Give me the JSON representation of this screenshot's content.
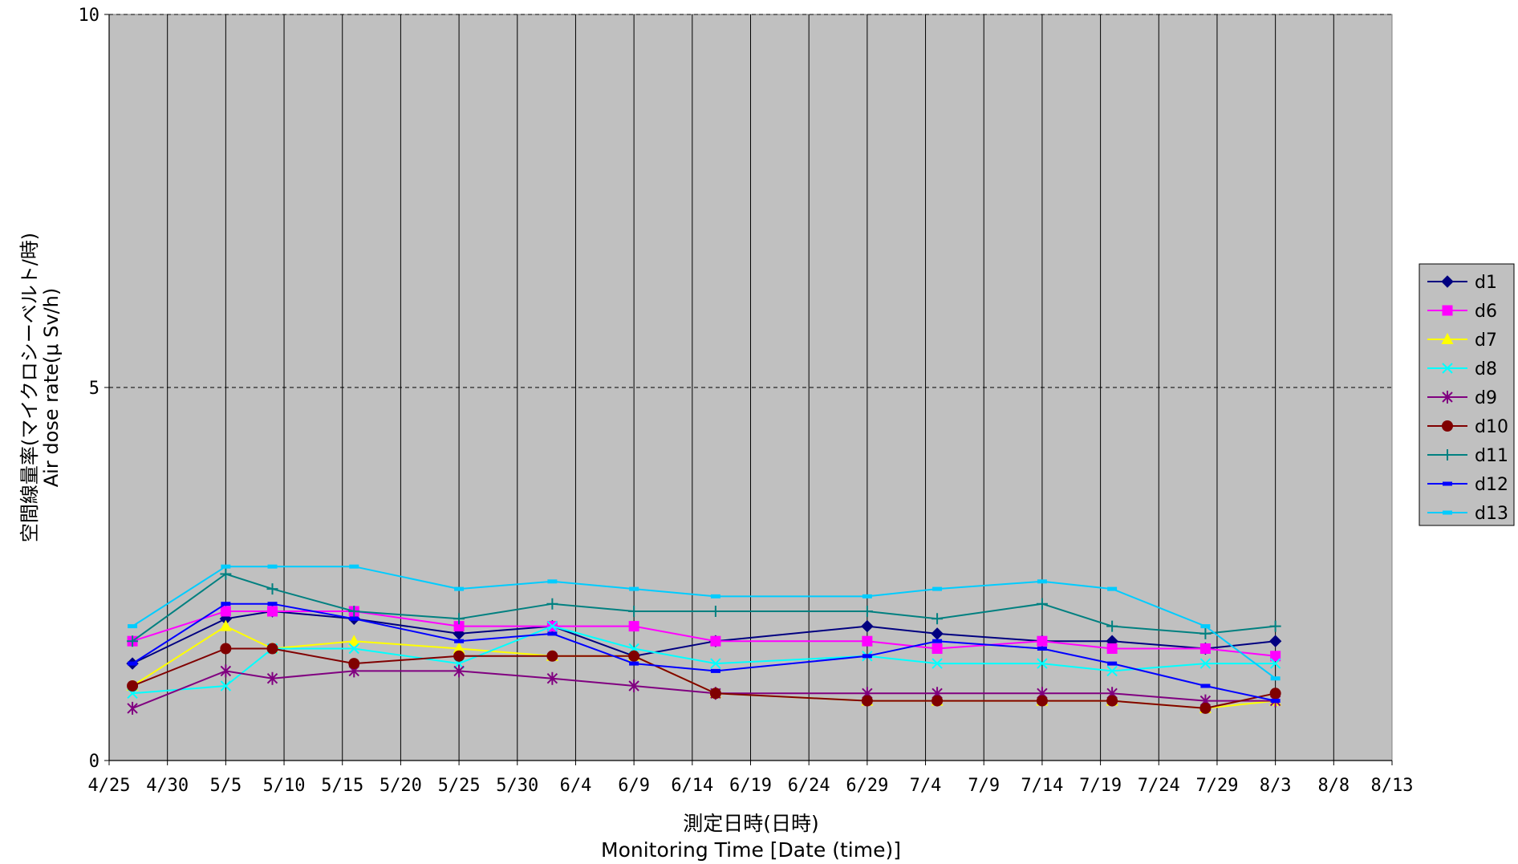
{
  "chart_data": {
    "type": "line",
    "title": "",
    "ylabel_ja": "空間線量率(マイクロシーベルト/時)",
    "ylabel_en": "Air dose rate(μ Sv/h)",
    "xlabel_ja": "測定日時(日時)",
    "xlabel_en": "Monitoring Time [Date (time)]",
    "ylim": [
      0,
      10
    ],
    "yticks": [
      "0",
      "5",
      "10"
    ],
    "xlim": [
      "2011-04-25",
      "2011-08-13"
    ],
    "xticks": [
      "4/25",
      "4/30",
      "5/5",
      "5/10",
      "5/15",
      "5/20",
      "5/25",
      "5/30",
      "6/4",
      "6/9",
      "6/14",
      "6/19",
      "6/24",
      "6/29",
      "7/4",
      "7/9",
      "7/14",
      "7/19",
      "7/24",
      "7/29",
      "8/3",
      "8/8",
      "8/13"
    ],
    "grid": {
      "vertical": true,
      "horizontal_dashed": [
        5,
        10
      ]
    },
    "legend_position": "right",
    "plot_background": "#c0c0c0",
    "series": [
      {
        "name": "d1",
        "color": "#000080",
        "marker": "diamond",
        "points": [
          [
            "2011-04-27",
            1.3
          ],
          [
            "2011-05-05",
            1.9
          ],
          [
            "2011-05-09",
            2.0
          ],
          [
            "2011-05-16",
            1.9
          ],
          [
            "2011-05-25",
            1.7
          ],
          [
            "2011-06-02",
            1.8
          ],
          [
            "2011-06-09",
            1.4
          ],
          [
            "2011-06-16",
            1.6
          ],
          [
            "2011-06-29",
            1.8
          ],
          [
            "2011-07-05",
            1.7
          ],
          [
            "2011-07-14",
            1.6
          ],
          [
            "2011-07-20",
            1.6
          ],
          [
            "2011-07-28",
            1.5
          ],
          [
            "2011-08-03",
            1.6
          ]
        ]
      },
      {
        "name": "d6",
        "color": "#ff00ff",
        "marker": "square",
        "points": [
          [
            "2011-04-27",
            1.6
          ],
          [
            "2011-05-05",
            2.0
          ],
          [
            "2011-05-09",
            2.0
          ],
          [
            "2011-05-16",
            2.0
          ],
          [
            "2011-05-25",
            1.8
          ],
          [
            "2011-06-02",
            1.8
          ],
          [
            "2011-06-09",
            1.8
          ],
          [
            "2011-06-16",
            1.6
          ],
          [
            "2011-06-29",
            1.6
          ],
          [
            "2011-07-05",
            1.5
          ],
          [
            "2011-07-14",
            1.6
          ],
          [
            "2011-07-20",
            1.5
          ],
          [
            "2011-07-28",
            1.5
          ],
          [
            "2011-08-03",
            1.4
          ]
        ]
      },
      {
        "name": "d7",
        "color": "#ffff00",
        "marker": "triangle",
        "points": [
          [
            "2011-04-27",
            1.0
          ],
          [
            "2011-05-05",
            1.8
          ],
          [
            "2011-05-09",
            1.5
          ],
          [
            "2011-05-16",
            1.6
          ],
          [
            "2011-05-25",
            1.5
          ],
          [
            "2011-06-02",
            1.4
          ],
          [
            "2011-06-09",
            1.4
          ],
          [
            "2011-06-16",
            0.9
          ],
          [
            "2011-06-29",
            0.8
          ],
          [
            "2011-07-05",
            0.8
          ],
          [
            "2011-07-14",
            0.8
          ],
          [
            "2011-07-20",
            0.8
          ],
          [
            "2011-07-28",
            0.7
          ],
          [
            "2011-08-03",
            0.8
          ]
        ]
      },
      {
        "name": "d8",
        "color": "#00ffff",
        "marker": "x",
        "points": [
          [
            "2011-04-27",
            0.9
          ],
          [
            "2011-05-05",
            1.0
          ],
          [
            "2011-05-09",
            1.5
          ],
          [
            "2011-05-16",
            1.5
          ],
          [
            "2011-05-25",
            1.3
          ],
          [
            "2011-06-02",
            1.8
          ],
          [
            "2011-06-09",
            1.5
          ],
          [
            "2011-06-16",
            1.3
          ],
          [
            "2011-06-29",
            1.4
          ],
          [
            "2011-07-05",
            1.3
          ],
          [
            "2011-07-14",
            1.3
          ],
          [
            "2011-07-20",
            1.2
          ],
          [
            "2011-07-28",
            1.3
          ],
          [
            "2011-08-03",
            1.3
          ]
        ]
      },
      {
        "name": "d9",
        "color": "#800080",
        "marker": "star",
        "points": [
          [
            "2011-04-27",
            0.7
          ],
          [
            "2011-05-05",
            1.2
          ],
          [
            "2011-05-09",
            1.1
          ],
          [
            "2011-05-16",
            1.2
          ],
          [
            "2011-05-25",
            1.2
          ],
          [
            "2011-06-02",
            1.1
          ],
          [
            "2011-06-09",
            1.0
          ],
          [
            "2011-06-16",
            0.9
          ],
          [
            "2011-06-29",
            0.9
          ],
          [
            "2011-07-05",
            0.9
          ],
          [
            "2011-07-14",
            0.9
          ],
          [
            "2011-07-20",
            0.9
          ],
          [
            "2011-07-28",
            0.8
          ],
          [
            "2011-08-03",
            0.8
          ]
        ]
      },
      {
        "name": "d10",
        "color": "#800000",
        "marker": "circle",
        "points": [
          [
            "2011-04-27",
            1.0
          ],
          [
            "2011-05-05",
            1.5
          ],
          [
            "2011-05-09",
            1.5
          ],
          [
            "2011-05-16",
            1.3
          ],
          [
            "2011-05-25",
            1.4
          ],
          [
            "2011-06-02",
            1.4
          ],
          [
            "2011-06-09",
            1.4
          ],
          [
            "2011-06-16",
            0.9
          ],
          [
            "2011-06-29",
            0.8
          ],
          [
            "2011-07-05",
            0.8
          ],
          [
            "2011-07-14",
            0.8
          ],
          [
            "2011-07-20",
            0.8
          ],
          [
            "2011-07-28",
            0.7
          ],
          [
            "2011-08-03",
            0.9
          ]
        ]
      },
      {
        "name": "d11",
        "color": "#008080",
        "marker": "plus",
        "points": [
          [
            "2011-04-27",
            1.6
          ],
          [
            "2011-05-05",
            2.5
          ],
          [
            "2011-05-09",
            2.3
          ],
          [
            "2011-05-16",
            2.0
          ],
          [
            "2011-05-25",
            1.9
          ],
          [
            "2011-06-02",
            2.1
          ],
          [
            "2011-06-09",
            2.0
          ],
          [
            "2011-06-16",
            2.0
          ],
          [
            "2011-06-29",
            2.0
          ],
          [
            "2011-07-05",
            1.9
          ],
          [
            "2011-07-14",
            2.1
          ],
          [
            "2011-07-20",
            1.8
          ],
          [
            "2011-07-28",
            1.7
          ],
          [
            "2011-08-03",
            1.8
          ]
        ]
      },
      {
        "name": "d12",
        "color": "#0000ff",
        "marker": "dash",
        "points": [
          [
            "2011-04-27",
            1.3
          ],
          [
            "2011-05-05",
            2.1
          ],
          [
            "2011-05-09",
            2.1
          ],
          [
            "2011-05-16",
            1.9
          ],
          [
            "2011-05-25",
            1.6
          ],
          [
            "2011-06-02",
            1.7
          ],
          [
            "2011-06-09",
            1.3
          ],
          [
            "2011-06-16",
            1.2
          ],
          [
            "2011-06-29",
            1.4
          ],
          [
            "2011-07-05",
            1.6
          ],
          [
            "2011-07-14",
            1.5
          ],
          [
            "2011-07-20",
            1.3
          ],
          [
            "2011-07-28",
            1.0
          ],
          [
            "2011-08-03",
            0.8
          ]
        ]
      },
      {
        "name": "d13",
        "color": "#00ccff",
        "marker": "dash",
        "points": [
          [
            "2011-04-27",
            1.8
          ],
          [
            "2011-05-05",
            2.6
          ],
          [
            "2011-05-09",
            2.6
          ],
          [
            "2011-05-16",
            2.6
          ],
          [
            "2011-05-25",
            2.3
          ],
          [
            "2011-06-02",
            2.4
          ],
          [
            "2011-06-09",
            2.3
          ],
          [
            "2011-06-16",
            2.2
          ],
          [
            "2011-06-29",
            2.2
          ],
          [
            "2011-07-05",
            2.3
          ],
          [
            "2011-07-14",
            2.4
          ],
          [
            "2011-07-20",
            2.3
          ],
          [
            "2011-07-28",
            1.8
          ],
          [
            "2011-08-03",
            1.1
          ]
        ]
      }
    ]
  }
}
